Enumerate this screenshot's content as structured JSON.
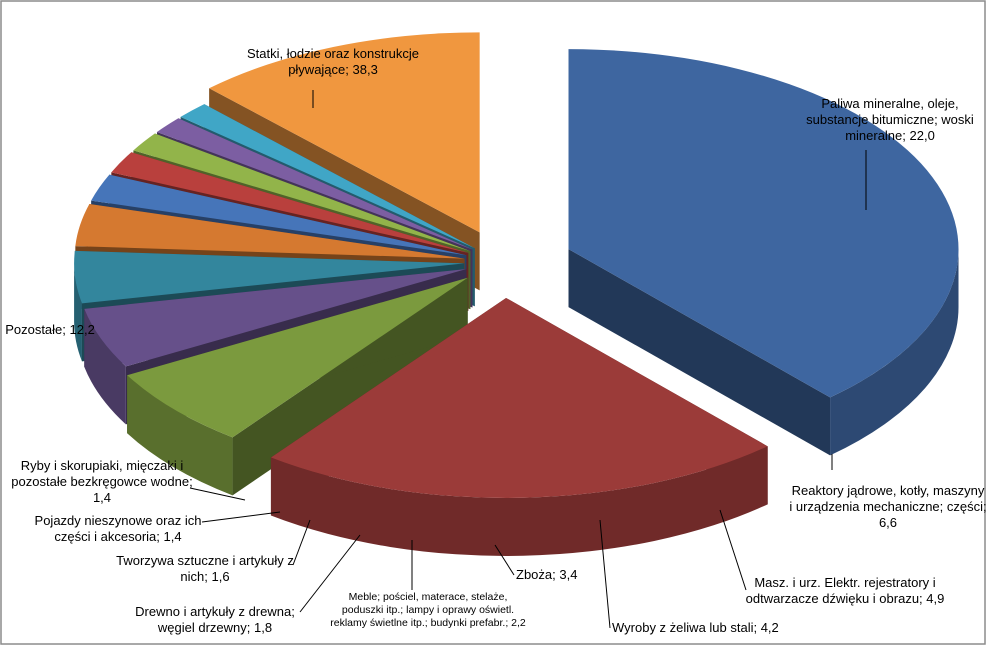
{
  "chart_data": {
    "type": "pie",
    "title": "",
    "series": [
      {
        "values": [
          38.3,
          22.0,
          6.6,
          4.9,
          4.2,
          3.4,
          2.2,
          1.8,
          1.6,
          1.4,
          1.4,
          12.2
        ],
        "labels": [
          "Statki, łodzie oraz konstrukcje pływające",
          "Paliwa mineralne, oleje, substancje bitumiczne; woski mineralne",
          "Reaktory jądrowe, kotły, maszyny i urządzenia mechaniczne; części;",
          "Masz. i urz. Elektr. rejestratory i odtwarzacze dźwięku i obrazu",
          "Wyroby z żeliwa lub stali",
          "Zboża",
          "Meble; pościel, materace, stelaże, poduszki itp.; lampy i oprawy oświetl. reklamy świetlne itp.; budynki prefabr.",
          "Drewno i artykuły z drewna; węgiel drzewny",
          "Tworzywa sztuczne i artykuły z nich",
          "Pojazdy nieszynowe oraz ich części i akcesoria",
          "Ryby i skorupiaki, mięczaki i pozostałe bezkręgowce wodne",
          "Pozostałe"
        ]
      }
    ],
    "slice_colors": [
      "#3e66a0",
      "#9b3b39",
      "#7b9a3e",
      "#66508a",
      "#33869d",
      "#d57930",
      "#4675b9",
      "#b9403d",
      "#92b44a",
      "#7c5ea2",
      "#40a6c6",
      "#f0973f"
    ],
    "exploded": true,
    "style_3d": true,
    "legend": "none",
    "data_labels": [
      [
        "Statki, łodzie oraz konstrukcje",
        "pływające; 38,3"
      ],
      [
        "Paliwa mineralne, oleje,",
        "substancje bitumiczne; woski",
        "mineralne; 22,0"
      ],
      [
        "Reaktory jądrowe, kotły, maszyny",
        "i urządzenia mechaniczne; części;",
        "6,6"
      ],
      [
        "Masz. i urz. Elektr. rejestratory i",
        "odtwarzacze dźwięku i obrazu; 4,9"
      ],
      [
        "Wyroby z żeliwa lub stali; 4,2"
      ],
      [
        "Zboża; 3,4"
      ],
      [
        "Meble; pościel, materace, stelaże,",
        "poduszki itp.; lampy i oprawy oświetl.",
        "reklamy świetlne itp.; budynki prefabr.; 2,2"
      ],
      [
        "Drewno i artykuły z drewna;",
        "węgiel drzewny; 1,8"
      ],
      [
        "Tworzywa sztuczne i artykuły z",
        "nich; 1,6"
      ],
      [
        "Pojazdy nieszynowe oraz ich",
        "części i akcesoria; 1,4"
      ],
      [
        "Ryby i skorupiaki, mięczaki i",
        "pozostałe bezkręgowce wodne;",
        "1,4"
      ],
      [
        "Pozostałe; 12,2"
      ]
    ]
  }
}
